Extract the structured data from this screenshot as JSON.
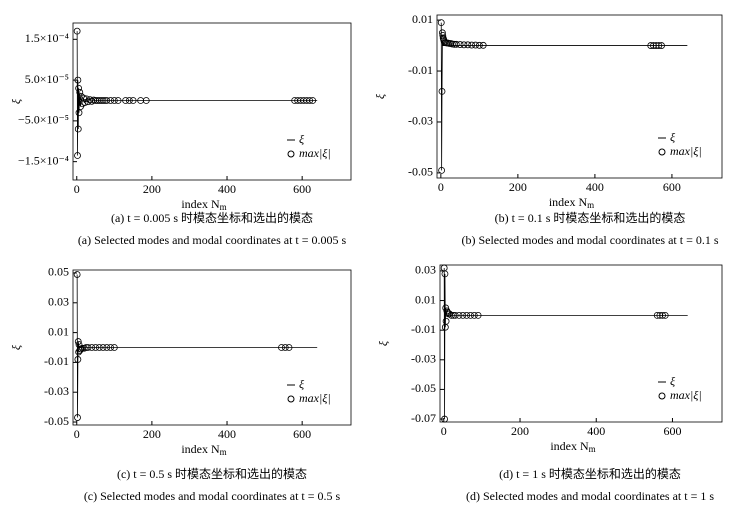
{
  "chart_data": [
    {
      "type": "scatter",
      "caption": "(a) t = 0.005 s 时模态坐标和选出的模态",
      "caption_en": "(a) Selected modes and modal coordinates at t = 0.005 s",
      "xlabel": "index N",
      "xlabel_sub": "m",
      "ylabel": "ξ",
      "xlim": [
        -10,
        730
      ],
      "xticks": [
        0,
        200,
        400,
        600
      ],
      "ylim": [
        -0.000195,
        0.00019
      ],
      "yticks": [
        {
          "value": 0.00015,
          "label": "1.5×10⁻⁴"
        },
        {
          "value": 5e-05,
          "label": "5.0×10⁻⁵"
        },
        {
          "value": -5e-05,
          "label": "−5.0×10⁻⁵"
        },
        {
          "value": -0.00015,
          "label": "−1.5×10⁻⁴"
        }
      ],
      "series": [
        {
          "name": "ξ",
          "kind": "line",
          "color": "#000000",
          "x": [
            1,
            2,
            3,
            4,
            5,
            6,
            8,
            10,
            14,
            20,
            30,
            50,
            640
          ],
          "values": [
            0.00017,
            -0.000135,
            5e-05,
            -7e-05,
            3e-05,
            -3e-05,
            2e-05,
            -1.5e-05,
            1e-05,
            -5e-06,
            2e-06,
            0,
            0
          ]
        },
        {
          "name": "max|ξ|",
          "kind": "marker",
          "color": "#000000",
          "x": [
            1,
            2,
            3,
            4,
            5,
            6,
            8,
            10,
            12,
            15,
            18,
            22,
            26,
            30,
            35,
            40,
            45,
            50,
            55,
            60,
            65,
            70,
            75,
            80,
            90,
            100,
            110,
            130,
            140,
            150,
            170,
            185,
            580,
            588,
            596,
            604,
            612,
            620,
            628
          ],
          "values": [
            0.00017,
            -0.000135,
            5e-05,
            -7e-05,
            3e-05,
            -3e-05,
            2e-05,
            -1.5e-05,
            1e-05,
            -8e-06,
            6e-06,
            -5e-06,
            4e-06,
            -3e-06,
            2e-06,
            -2e-06,
            1e-06,
            0,
            0,
            0,
            0,
            0,
            0,
            0,
            0,
            0,
            0,
            0,
            0,
            0,
            0,
            0,
            0,
            0,
            0,
            0,
            0,
            0,
            0
          ]
        }
      ]
    },
    {
      "type": "scatter",
      "caption": "(b) t = 0.1 s 时模态坐标和选出的模态",
      "caption_en": "(b) Selected modes and modal coordinates at t = 0.1 s",
      "xlabel": "index N",
      "xlabel_sub": "m",
      "ylabel": "ξ",
      "xlim": [
        -10,
        730
      ],
      "xticks": [
        0,
        200,
        400,
        600
      ],
      "ylim": [
        -0.052,
        0.012
      ],
      "yticks": [
        0.01,
        -0.01,
        -0.03,
        -0.05
      ],
      "series": [
        {
          "name": "ξ",
          "kind": "line",
          "color": "#000000",
          "x": [
            1,
            2,
            3,
            4,
            6,
            640
          ],
          "values": [
            0.009,
            -0.049,
            -0.018,
            0.002,
            0,
            0
          ]
        },
        {
          "name": "max|ξ|",
          "kind": "marker",
          "color": "#000000",
          "x": [
            1,
            2,
            3,
            4,
            5,
            6,
            7,
            8,
            10,
            12,
            15,
            18,
            22,
            26,
            30,
            35,
            40,
            50,
            60,
            70,
            80,
            90,
            100,
            110,
            545,
            552,
            559,
            566,
            573
          ],
          "values": [
            0.009,
            -0.049,
            -0.018,
            0.005,
            0.004,
            0.003,
            0.0025,
            0.002,
            0.0015,
            0.0012,
            0.001,
            0.001,
            0.0008,
            0.0008,
            0.0006,
            0.0005,
            0.0005,
            0.0004,
            0.0003,
            0.0003,
            0.0002,
            0.0002,
            0.0001,
            0.0001,
            0,
            0,
            0,
            0,
            0
          ]
        }
      ]
    },
    {
      "type": "scatter",
      "caption": "(c) t = 0.5 s 时模态坐标和选出的模态",
      "caption_en": "(c) Selected modes and modal coordinates at t = 0.5 s",
      "xlabel": "index N",
      "xlabel_sub": "m",
      "ylabel": "ξ",
      "xlim": [
        -10,
        730
      ],
      "xticks": [
        0,
        200,
        400,
        600
      ],
      "ylim": [
        -0.052,
        0.052
      ],
      "yticks": [
        0.05,
        0.03,
        0.01,
        -0.01,
        -0.03,
        -0.05
      ],
      "series": [
        {
          "name": "ξ",
          "kind": "line",
          "color": "#000000",
          "x": [
            1,
            2,
            3,
            4,
            6,
            640
          ],
          "values": [
            0.049,
            -0.047,
            -0.008,
            0.004,
            0,
            0
          ]
        },
        {
          "name": "max|ξ|",
          "kind": "marker",
          "color": "#000000",
          "x": [
            1,
            2,
            3,
            4,
            5,
            6,
            8,
            10,
            12,
            15,
            20,
            25,
            30,
            40,
            50,
            60,
            70,
            80,
            90,
            100,
            545,
            555,
            565
          ],
          "values": [
            0.049,
            -0.047,
            -0.008,
            0.004,
            -0.003,
            0.002,
            -0.002,
            -0.001,
            -0.001,
            -0.0005,
            -0.0005,
            0,
            0,
            0,
            0,
            0,
            0,
            0,
            0,
            0,
            0,
            0,
            0
          ]
        }
      ]
    },
    {
      "type": "scatter",
      "caption": "(d) t = 1 s 时模态坐标和选出的模态",
      "caption_en": "(d) Selected modes and modal coordinates at t = 1 s",
      "xlabel": "index N",
      "xlabel_sub": "m",
      "ylabel": "ξ",
      "xlim": [
        -10,
        730
      ],
      "xticks": [
        0,
        200,
        400,
        600
      ],
      "ylim": [
        -0.072,
        0.034
      ],
      "yticks": [
        0.03,
        0.01,
        -0.01,
        -0.03,
        -0.05,
        -0.07
      ],
      "series": [
        {
          "name": "ξ",
          "kind": "line",
          "color": "#000000",
          "x": [
            1,
            2,
            3,
            4,
            5,
            7,
            10,
            640
          ],
          "values": [
            0.032,
            -0.07,
            0.028,
            -0.008,
            0.005,
            0.001,
            0,
            0
          ]
        },
        {
          "name": "max|ξ|",
          "kind": "marker",
          "color": "#000000",
          "x": [
            1,
            2,
            3,
            4,
            5,
            6,
            8,
            10,
            12,
            15,
            20,
            25,
            30,
            40,
            50,
            60,
            70,
            80,
            90,
            560,
            567,
            574,
            581
          ],
          "values": [
            0.032,
            -0.07,
            0.028,
            -0.008,
            0.005,
            -0.004,
            0.003,
            0.002,
            0.001,
            0.001,
            0,
            0,
            0,
            0,
            0,
            0,
            0,
            0,
            0,
            0,
            0,
            0,
            0
          ]
        }
      ]
    }
  ]
}
